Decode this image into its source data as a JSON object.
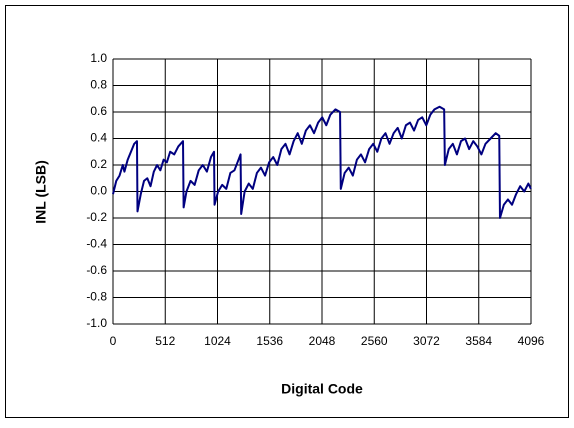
{
  "chart_data": {
    "type": "line",
    "xlabel": "Digital Code",
    "ylabel": "INL (LSB)",
    "xlim": [
      0,
      4096
    ],
    "xticks": [
      0,
      512,
      1024,
      1536,
      2048,
      2560,
      3072,
      3584,
      4096
    ],
    "ylim": [
      -1,
      1
    ],
    "yticks": [
      {
        "value": -1,
        "label": "-1.0"
      },
      -0.8,
      -0.6,
      -0.4,
      -0.2,
      {
        "value": 0,
        "label": "0.0"
      },
      0.2,
      0.4,
      0.6,
      0.8,
      {
        "value": 1,
        "label": "1.0"
      }
    ],
    "grid": true,
    "series": [
      {
        "color": "#000080",
        "x": [
          0,
          32,
          64,
          96,
          112,
          144,
          176,
          208,
          235,
          240,
          272,
          304,
          336,
          368,
          400,
          432,
          464,
          496,
          528,
          560,
          600,
          640,
          686,
          692,
          720,
          760,
          800,
          840,
          880,
          920,
          960,
          990,
          995,
          1030,
          1070,
          1110,
          1150,
          1190,
          1230,
          1250,
          1256,
          1290,
          1330,
          1370,
          1410,
          1450,
          1490,
          1530,
          1570,
          1610,
          1650,
          1690,
          1730,
          1770,
          1810,
          1850,
          1890,
          1930,
          1970,
          2010,
          2050,
          2090,
          2130,
          2180,
          2225,
          2232,
          2270,
          2310,
          2350,
          2390,
          2430,
          2470,
          2510,
          2550,
          2590,
          2630,
          2670,
          2710,
          2750,
          2790,
          2830,
          2870,
          2910,
          2950,
          2990,
          3030,
          3070,
          3110,
          3150,
          3200,
          3245,
          3252,
          3290,
          3330,
          3370,
          3410,
          3450,
          3490,
          3530,
          3570,
          3610,
          3650,
          3700,
          3750,
          3785,
          3792,
          3830,
          3870,
          3910,
          3950,
          3990,
          4030,
          4070,
          4095
        ],
        "values": [
          -0.02,
          0.08,
          0.12,
          0.2,
          0.15,
          0.24,
          0.3,
          0.36,
          0.38,
          -0.15,
          -0.02,
          0.08,
          0.1,
          0.04,
          0.15,
          0.2,
          0.16,
          0.24,
          0.22,
          0.3,
          0.28,
          0.34,
          0.38,
          -0.12,
          0.0,
          0.08,
          0.05,
          0.16,
          0.2,
          0.15,
          0.26,
          0.3,
          -0.1,
          0.0,
          0.05,
          0.02,
          0.14,
          0.16,
          0.24,
          0.28,
          -0.17,
          0.0,
          0.06,
          0.02,
          0.14,
          0.18,
          0.12,
          0.22,
          0.26,
          0.2,
          0.32,
          0.36,
          0.28,
          0.38,
          0.44,
          0.36,
          0.46,
          0.5,
          0.44,
          0.52,
          0.56,
          0.5,
          0.58,
          0.62,
          0.6,
          0.02,
          0.14,
          0.18,
          0.12,
          0.24,
          0.28,
          0.22,
          0.32,
          0.36,
          0.3,
          0.4,
          0.44,
          0.36,
          0.44,
          0.48,
          0.4,
          0.5,
          0.52,
          0.46,
          0.54,
          0.56,
          0.5,
          0.58,
          0.62,
          0.64,
          0.62,
          0.2,
          0.32,
          0.36,
          0.28,
          0.38,
          0.4,
          0.32,
          0.38,
          0.34,
          0.28,
          0.36,
          0.4,
          0.44,
          0.42,
          -0.2,
          -0.1,
          -0.06,
          -0.1,
          -0.02,
          0.04,
          0.0,
          0.06,
          0.02
        ]
      }
    ]
  }
}
